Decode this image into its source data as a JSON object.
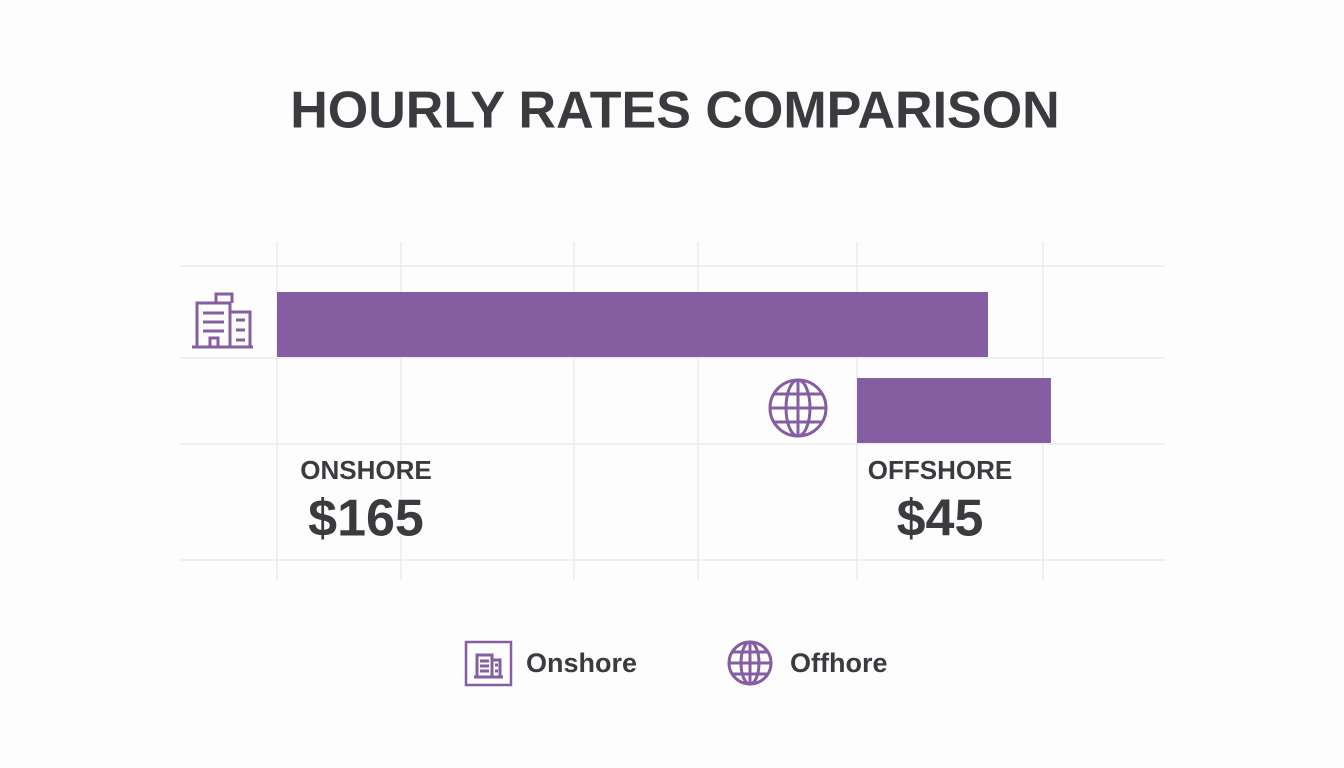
{
  "chart_data": {
    "type": "bar",
    "title": "HOURLY RATES COMPARISON",
    "categories": [
      "ONSHORE",
      "OFFSHORE"
    ],
    "values": [
      165,
      45
    ],
    "value_labels": [
      "$165",
      "$45"
    ],
    "color": "#845ea0",
    "legend": [
      "Onshore",
      "Offhore"
    ]
  }
}
